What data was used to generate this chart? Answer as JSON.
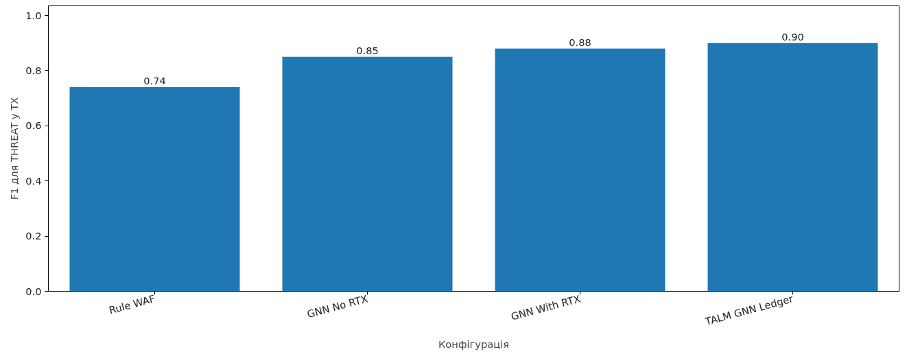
{
  "chart_data": {
    "type": "bar",
    "xlabel": "Конфігурація",
    "ylabel": "F1 для THREAT у TX",
    "categories": [
      "Rule WAF",
      "GNN No RTX",
      "GNN With RTX",
      "TALM GNN Ledger"
    ],
    "values": [
      0.74,
      0.85,
      0.88,
      0.9
    ],
    "value_labels": [
      "0.74",
      "0.85",
      "0.88",
      "0.90"
    ],
    "color": "#1f77b4",
    "ylim": [
      0,
      1.035
    ],
    "yticks": [
      {
        "value": 0,
        "label": "0.0"
      },
      0.2,
      0.4,
      0.6,
      0.8,
      {
        "value": 1,
        "label": "1.0"
      }
    ],
    "grid": false
  }
}
